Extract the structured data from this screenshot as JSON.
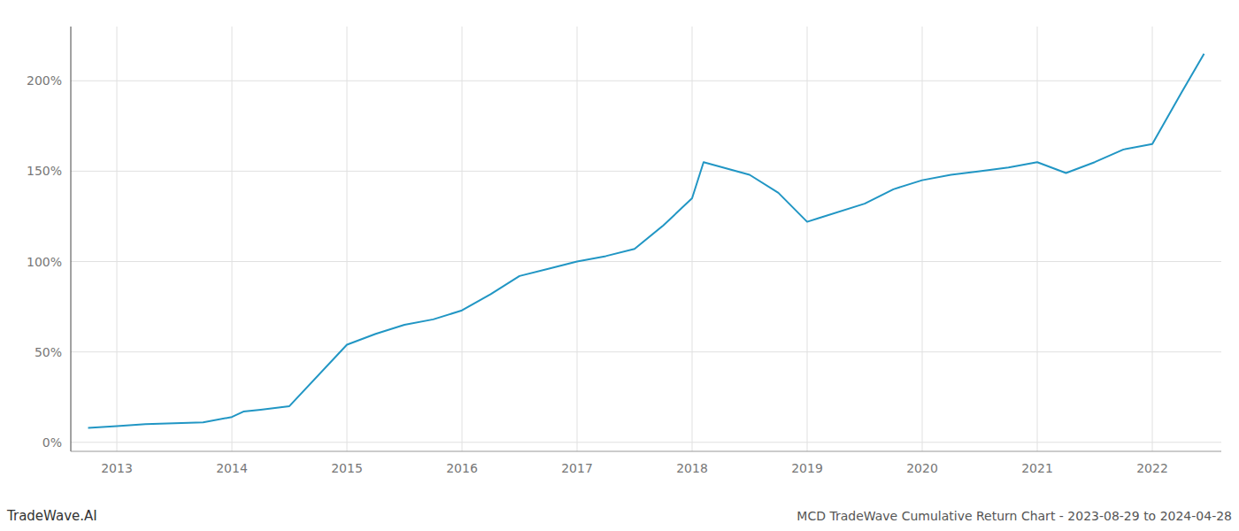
{
  "chart_data": {
    "type": "line",
    "title": "MCD TradeWave Cumulative Return Chart - 2023-08-29 to 2024-04-28",
    "annotations": [
      "TradeWave.AI"
    ],
    "x": [
      2012.75,
      2013.0,
      2013.25,
      2013.5,
      2013.75,
      2014.0,
      2014.1,
      2014.25,
      2014.5,
      2015.0,
      2015.25,
      2015.5,
      2015.75,
      2016.0,
      2016.25,
      2016.5,
      2016.75,
      2017.0,
      2017.25,
      2017.5,
      2017.75,
      2018.0,
      2018.1,
      2018.5,
      2018.75,
      2019.0,
      2019.1,
      2019.5,
      2019.75,
      2020.0,
      2020.25,
      2020.5,
      2020.75,
      2021.0,
      2021.25,
      2021.5,
      2021.75,
      2022.0,
      2022.25,
      2022.45
    ],
    "values": [
      8,
      9,
      10,
      10.5,
      11,
      14,
      17,
      18,
      20,
      54,
      60,
      65,
      68,
      73,
      82,
      92,
      96,
      100,
      103,
      107,
      120,
      135,
      155,
      148,
      138,
      122,
      124,
      132,
      140,
      145,
      148,
      150,
      152,
      155,
      149,
      155,
      162,
      165,
      193,
      215
    ],
    "color": "#2196c4",
    "xlim": [
      2012.6,
      2022.6
    ],
    "xticks": [
      2013,
      2014,
      2015,
      2016,
      2017,
      2018,
      2019,
      2020,
      2021,
      2022
    ],
    "ylim": [
      -5,
      230
    ],
    "yticks": [
      {
        "value": 0,
        "label": "0%"
      },
      {
        "value": 50,
        "label": "50%"
      },
      {
        "value": 100,
        "label": "100%"
      },
      {
        "value": 150,
        "label": "150%"
      },
      {
        "value": 200,
        "label": "200%"
      }
    ],
    "grid": true
  }
}
